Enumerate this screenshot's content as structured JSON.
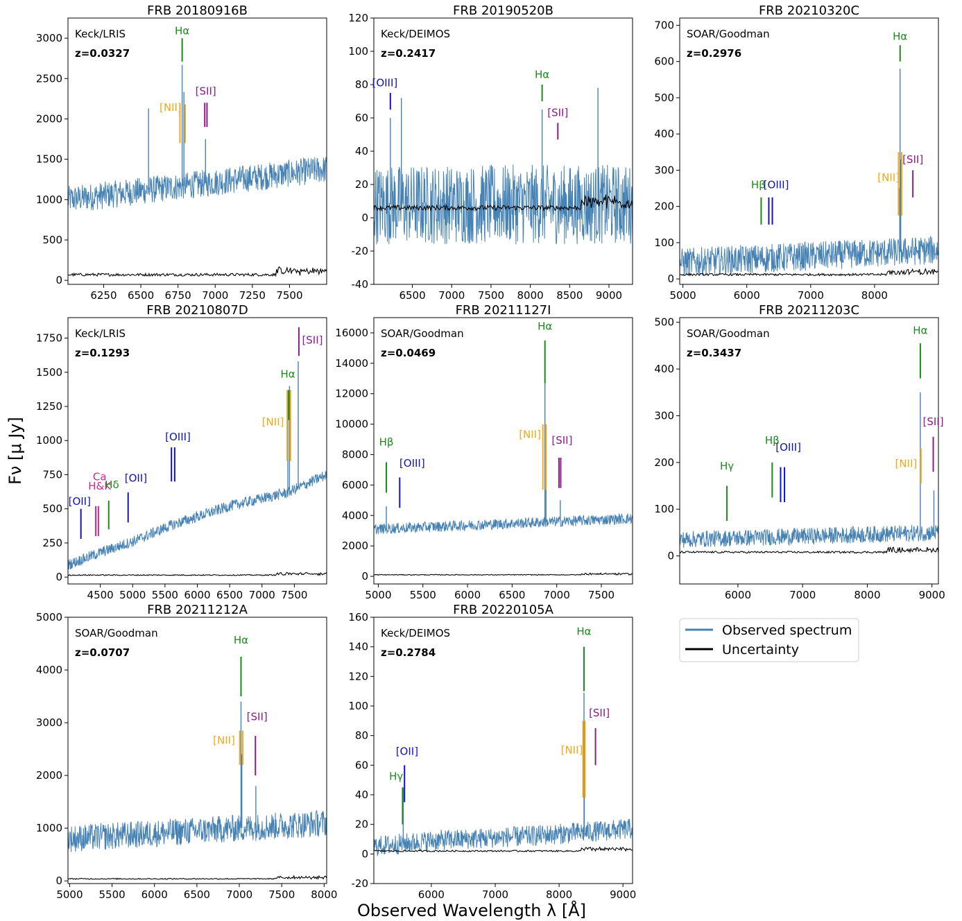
{
  "figure": {
    "xlabel": "Observed Wavelength λ [Å]",
    "ylabel": "Fν [μ Jy]",
    "legend": [
      {
        "label": "Observed spectrum",
        "color": "#4682b4"
      },
      {
        "label": "Uncertainty",
        "color": "#000000"
      }
    ]
  },
  "chart_data": [
    {
      "type": "line",
      "title": "FRB 20180916B",
      "instrument": "Keck/LRIS",
      "redshift": "z=0.0327",
      "xlim": [
        6010,
        7750
      ],
      "ylim": [
        -50,
        3250
      ],
      "xticks": [
        6250,
        6500,
        6750,
        7000,
        7250,
        7500
      ],
      "yticks": [
        0,
        500,
        1000,
        1500,
        2000,
        2500,
        3000
      ],
      "continuum": [
        [
          6010,
          1000
        ],
        [
          7750,
          1380
        ]
      ],
      "noise": 170,
      "err": 70,
      "peaks": [
        [
          6552,
          2130
        ],
        [
          6778,
          2670
        ],
        [
          6790,
          2330
        ],
        [
          6935,
          1750
        ]
      ],
      "lines": [
        {
          "label": "Hα",
          "x": 6778,
          "y0": 2710,
          "y1": 3000,
          "color": "green",
          "lx": 6778,
          "ly": 3050
        },
        {
          "label": "[NII]",
          "x": [
            6763,
            6798
          ],
          "y0": 1700,
          "y1": 2180,
          "color": "orange",
          "lx": 6700,
          "ly": 2100
        },
        {
          "label": "[SII]",
          "x": [
            6930,
            6945
          ],
          "y0": 1900,
          "y1": 2200,
          "color": "purple",
          "lx": 6937,
          "ly": 2300
        }
      ]
    },
    {
      "type": "line",
      "title": "FRB 20190520B",
      "instrument": "Keck/DEIMOS",
      "redshift": "z=0.2417",
      "xlim": [
        6010,
        9300
      ],
      "ylim": [
        -40,
        120
      ],
      "xticks": [
        6500,
        7000,
        7500,
        8000,
        8500,
        9000
      ],
      "yticks": [
        -40,
        -20,
        0,
        20,
        40,
        60,
        80,
        100,
        120
      ],
      "continuum": [
        [
          6010,
          8
        ],
        [
          9300,
          8
        ]
      ],
      "noise": 24,
      "err": 6,
      "peaks": [
        [
          6220,
          60
        ],
        [
          6360,
          72
        ],
        [
          8150,
          65
        ],
        [
          8860,
          78
        ]
      ],
      "lines": [
        {
          "label": "[OIII]",
          "x": 6220,
          "y0": 65,
          "y1": 75,
          "color": "blue",
          "lx": 6150,
          "ly": 79
        },
        {
          "label": "Hα",
          "x": 8150,
          "y0": 70,
          "y1": 80,
          "color": "green",
          "lx": 8150,
          "ly": 84
        },
        {
          "label": "[SII]",
          "x": 8350,
          "y0": 47,
          "y1": 57,
          "color": "purple",
          "lx": 8350,
          "ly": 61
        }
      ]
    },
    {
      "type": "line",
      "title": "FRB 20210320C",
      "instrument": "SOAR/Goodman",
      "redshift": "z=0.2976",
      "xlim": [
        4950,
        9000
      ],
      "ylim": [
        -15,
        720
      ],
      "xticks": [
        5000,
        6000,
        7000,
        8000
      ],
      "yticks": [
        0,
        100,
        200,
        300,
        400,
        500,
        600,
        700
      ],
      "continuum": [
        [
          4950,
          45
        ],
        [
          9000,
          80
        ]
      ],
      "noise": 40,
      "err": 12,
      "peaks": [
        [
          8400,
          580
        ],
        [
          8395,
          250
        ],
        [
          8410,
          330
        ]
      ],
      "lines": [
        {
          "label": "Hβ",
          "x": 6225,
          "y0": 150,
          "y1": 225,
          "color": "green",
          "lx": 6180,
          "ly": 250
        },
        {
          "label": "[OIII]",
          "x": [
            6345,
            6400
          ],
          "y0": 150,
          "y1": 225,
          "color": "blue",
          "lx": 6460,
          "ly": 250
        },
        {
          "label": "[NII]",
          "x": [
            8375,
            8425
          ],
          "y0": 175,
          "y1": 350,
          "color": "orange",
          "lx": 8220,
          "ly": 270
        },
        {
          "label": "Hα",
          "x": 8400,
          "y0": 600,
          "y1": 645,
          "color": "green",
          "lx": 8400,
          "ly": 660
        },
        {
          "label": "[SII]",
          "x": 8600,
          "y0": 225,
          "y1": 300,
          "color": "purple",
          "lx": 8600,
          "ly": 320
        }
      ]
    },
    {
      "type": "line",
      "title": "FRB 20210807D",
      "instrument": "Keck/LRIS",
      "redshift": "z=0.1293",
      "xlim": [
        4000,
        8000
      ],
      "ylim": [
        -50,
        1900
      ],
      "xticks": [
        4500,
        5000,
        5500,
        6000,
        6500,
        7000,
        7500
      ],
      "yticks": [
        0,
        250,
        500,
        750,
        1000,
        1250,
        1500,
        1750
      ],
      "continuum": [
        [
          4000,
          90
        ],
        [
          4500,
          180
        ],
        [
          5000,
          260
        ],
        [
          5600,
          380
        ],
        [
          6500,
          520
        ],
        [
          7400,
          620
        ],
        [
          8000,
          750
        ]
      ],
      "noise": 40,
      "err": 15,
      "peaks": [
        [
          7400,
          1370
        ],
        [
          7425,
          1400
        ],
        [
          7560,
          1580
        ]
      ],
      "lines": [
        {
          "label": "[OII]",
          "x": 4200,
          "y0": 280,
          "y1": 500,
          "color": "blue",
          "lx": 4180,
          "ly": 530
        },
        {
          "label": "Ca",
          "x": 4440,
          "y0": 0,
          "y1": 0,
          "color": "mediumvioletred",
          "lx": 4490,
          "ly": 710
        },
        {
          "label": "H&K",
          "x": [
            4430,
            4470
          ],
          "y0": 300,
          "y1": 520,
          "color": "mediumvioletred",
          "lx": 4490,
          "ly": 640
        },
        {
          "label": "Hδ",
          "x": 4630,
          "y0": 350,
          "y1": 560,
          "color": "green",
          "lx": 4680,
          "ly": 650
        },
        {
          "label": "[OII]",
          "x": 4930,
          "y0": 400,
          "y1": 620,
          "color": "blue",
          "lx": 5050,
          "ly": 700
        },
        {
          "label": "[OIII]",
          "x": [
            5600,
            5650
          ],
          "y0": 700,
          "y1": 950,
          "color": "blue",
          "lx": 5700,
          "ly": 1000
        },
        {
          "label": "[NII]",
          "x": [
            7390,
            7440
          ],
          "y0": 850,
          "y1": 1370,
          "color": "orange",
          "lx": 7170,
          "ly": 1110
        },
        {
          "label": "Hα",
          "x": 7415,
          "y0": 1150,
          "y1": 1370,
          "color": "green",
          "lx": 7400,
          "ly": 1460
        },
        {
          "label": "[SII]",
          "x": 7570,
          "y0": 1620,
          "y1": 1830,
          "color": "purple",
          "lx": 7780,
          "ly": 1710
        }
      ]
    },
    {
      "type": "line",
      "title": "FRB 20211127I",
      "instrument": "SOAR/Goodman",
      "redshift": "z=0.0469",
      "xlim": [
        4950,
        7850
      ],
      "ylim": [
        -500,
        17000
      ],
      "xticks": [
        5000,
        5500,
        6000,
        6500,
        7000,
        7500
      ],
      "yticks": [
        0,
        2000,
        4000,
        6000,
        8000,
        10000,
        12000,
        14000,
        16000
      ],
      "continuum": [
        [
          4950,
          3100
        ],
        [
          7850,
          3800
        ]
      ],
      "noise": 350,
      "err": 100,
      "peaks": [
        [
          5090,
          4600
        ],
        [
          6868,
          12800
        ],
        [
          6880,
          6500
        ],
        [
          7040,
          5000
        ]
      ],
      "lines": [
        {
          "label": "Hβ",
          "x": 5090,
          "y0": 5500,
          "y1": 7500,
          "color": "green",
          "lx": 5090,
          "ly": 8600
        },
        {
          "label": "[OIII]",
          "x": 5240,
          "y0": 4500,
          "y1": 6500,
          "color": "blue",
          "lx": 5380,
          "ly": 7200
        },
        {
          "label": "[NII]",
          "x": [
            6845,
            6880
          ],
          "y0": 5700,
          "y1": 10000,
          "color": "orange",
          "lx": 6700,
          "ly": 9100
        },
        {
          "label": "Hα",
          "x": 6868,
          "y0": 12700,
          "y1": 15500,
          "color": "green",
          "lx": 6868,
          "ly": 16200
        },
        {
          "label": "[SII]",
          "x": [
            7025,
            7045
          ],
          "y0": 5800,
          "y1": 7800,
          "color": "purple",
          "lx": 7060,
          "ly": 8700
        }
      ]
    },
    {
      "type": "line",
      "title": "FRB 20211203C",
      "instrument": "SOAR/Goodman",
      "redshift": "z=0.3437",
      "xlim": [
        5100,
        9100
      ],
      "ylim": [
        -60,
        510
      ],
      "xticks": [
        6000,
        7000,
        8000,
        9000
      ],
      "yticks": [
        0,
        100,
        200,
        300,
        400,
        500
      ],
      "continuum": [
        [
          5100,
          35
        ],
        [
          9100,
          50
        ]
      ],
      "noise": 18,
      "err": 8,
      "peaks": [
        [
          8820,
          350
        ],
        [
          9030,
          140
        ]
      ],
      "lines": [
        {
          "label": "Hγ",
          "x": 5830,
          "y0": 75,
          "y1": 150,
          "color": "green",
          "lx": 5830,
          "ly": 185
        },
        {
          "label": "Hβ",
          "x": 6530,
          "y0": 125,
          "y1": 200,
          "color": "green",
          "lx": 6530,
          "ly": 240
        },
        {
          "label": "[OIII]",
          "x": [
            6660,
            6720
          ],
          "y0": 115,
          "y1": 190,
          "color": "blue",
          "lx": 6780,
          "ly": 225
        },
        {
          "label": "[NII]",
          "x": 8830,
          "y0": 155,
          "y1": 230,
          "color": "orange",
          "lx": 8600,
          "ly": 190
        },
        {
          "label": "Hα",
          "x": 8820,
          "y0": 380,
          "y1": 455,
          "color": "green",
          "lx": 8820,
          "ly": 475
        },
        {
          "label": "[SII]",
          "x": 9020,
          "y0": 180,
          "y1": 255,
          "color": "purple",
          "lx": 9020,
          "ly": 280
        }
      ]
    },
    {
      "type": "line",
      "title": "FRB 20211212A",
      "instrument": "SOAR/Goodman",
      "redshift": "z=0.0707",
      "xlim": [
        4980,
        8030
      ],
      "ylim": [
        -50,
        5000
      ],
      "xticks": [
        5000,
        5500,
        6000,
        6500,
        7000,
        7500,
        8000
      ],
      "yticks": [
        0,
        1000,
        2000,
        3000,
        4000,
        5000
      ],
      "continuum": [
        [
          4980,
          800
        ],
        [
          8030,
          1100
        ]
      ],
      "noise": 260,
      "err": 40,
      "peaks": [
        [
          7020,
          3400
        ],
        [
          7030,
          2400
        ],
        [
          7195,
          1800
        ]
      ],
      "lines": [
        {
          "label": "Hα",
          "x": 7020,
          "y0": 3500,
          "y1": 4250,
          "color": "green",
          "lx": 7020,
          "ly": 4500
        },
        {
          "label": "[NII]",
          "x": [
            7005,
            7040
          ],
          "y0": 2200,
          "y1": 2850,
          "color": "orange",
          "lx": 6820,
          "ly": 2600
        },
        {
          "label": "[SII]",
          "x": 7190,
          "y0": 2000,
          "y1": 2750,
          "color": "purple",
          "lx": 7210,
          "ly": 3050
        }
      ]
    },
    {
      "type": "line",
      "title": "FRB 20220105A",
      "instrument": "Keck/DEIMOS",
      "redshift": "z=0.2784",
      "xlim": [
        5100,
        9150
      ],
      "ylim": [
        -20,
        160
      ],
      "xticks": [
        6000,
        7000,
        8000,
        9000
      ],
      "yticks": [
        -20,
        0,
        20,
        40,
        60,
        80,
        100,
        120,
        140,
        160
      ],
      "continuum": [
        [
          5100,
          5
        ],
        [
          6000,
          9
        ],
        [
          7500,
          12
        ],
        [
          9150,
          17
        ]
      ],
      "noise": 7,
      "err": 2,
      "peaks": [
        [
          8390,
          109
        ],
        [
          8395,
          65
        ],
        [
          5560,
          45
        ]
      ],
      "lines": [
        {
          "label": "Hγ",
          "x": 5550,
          "y0": 20,
          "y1": 45,
          "color": "green",
          "lx": 5450,
          "ly": 50
        },
        {
          "label": "[OII]",
          "x": 5580,
          "y0": 35,
          "y1": 60,
          "color": "blue",
          "lx": 5620,
          "ly": 67
        },
        {
          "label": "[NII]",
          "x": [
            8375,
            8405
          ],
          "y0": 38,
          "y1": 90,
          "color": "orange",
          "lx": 8200,
          "ly": 68
        },
        {
          "label": "Hα",
          "x": 8390,
          "y0": 110,
          "y1": 140,
          "color": "green",
          "lx": 8390,
          "ly": 148
        },
        {
          "label": "[SII]",
          "x": 8570,
          "y0": 60,
          "y1": 85,
          "color": "purple",
          "lx": 8630,
          "ly": 93
        }
      ]
    }
  ]
}
